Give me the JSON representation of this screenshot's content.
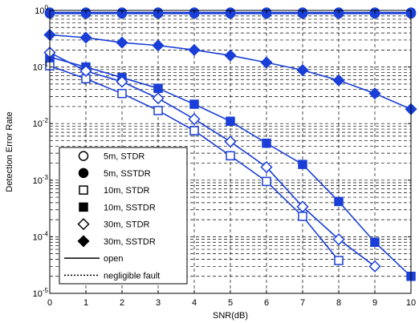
{
  "chart_data": {
    "type": "line",
    "title": "",
    "xlabel": "SNR(dB)",
    "ylabel": "Detection Error Rate",
    "xlim": [
      0,
      10
    ],
    "ylim": [
      1e-05,
      1
    ],
    "yscale": "log",
    "x_ticks": [
      "0",
      "1",
      "2",
      "3",
      "4",
      "5",
      "6",
      "7",
      "8",
      "9",
      "10"
    ],
    "y_ticks": [
      {
        "base": "10",
        "exp": "-5"
      },
      {
        "base": "10",
        "exp": "-4"
      },
      {
        "base": "10",
        "exp": "-3"
      },
      {
        "base": "10",
        "exp": "-2"
      },
      {
        "base": "10",
        "exp": "-1"
      },
      {
        "base": "10",
        "exp": "0"
      }
    ],
    "grid": true,
    "legend_position": "bottom-left",
    "color": "#1a3fd8",
    "series": [
      {
        "name": "5m, STDR",
        "marker": "circle-open",
        "line": "solid",
        "x": [
          0,
          1,
          2,
          3,
          4,
          5,
          6,
          7,
          8,
          9,
          10
        ],
        "y": [
          0.92,
          0.92,
          0.92,
          0.92,
          0.92,
          0.92,
          0.92,
          0.92,
          0.92,
          0.92,
          0.92
        ]
      },
      {
        "name": "5m, SSTDR",
        "marker": "circle-filled",
        "line": "solid",
        "x": [
          0,
          1,
          2,
          3,
          4,
          5,
          6,
          7,
          8,
          9,
          10
        ],
        "y": [
          0.88,
          0.88,
          0.88,
          0.88,
          0.88,
          0.88,
          0.88,
          0.88,
          0.88,
          0.88,
          0.88
        ]
      },
      {
        "name": "10m, STDR",
        "marker": "square-open",
        "line": "solid",
        "x": [
          0,
          1,
          2,
          3,
          4,
          5,
          6,
          7,
          8
        ],
        "y": [
          0.105,
          0.062,
          0.034,
          0.017,
          0.0075,
          0.0027,
          0.00095,
          0.00023,
          3.8e-05
        ]
      },
      {
        "name": "10m, SSTDR",
        "marker": "square-filled",
        "line": "solid",
        "x": [
          0,
          1,
          2,
          3,
          4,
          5,
          6,
          7,
          8,
          9,
          10
        ],
        "y": [
          0.15,
          0.1,
          0.065,
          0.042,
          0.022,
          0.011,
          0.0045,
          0.0019,
          0.00042,
          8e-05,
          2e-05
        ]
      },
      {
        "name": "30m, STDR",
        "marker": "diamond-open",
        "line": "solid",
        "x": [
          0,
          1,
          2,
          3,
          4,
          5,
          6,
          7,
          8,
          9
        ],
        "y": [
          0.18,
          0.085,
          0.055,
          0.028,
          0.012,
          0.0048,
          0.0017,
          0.00034,
          9e-05,
          3e-05
        ]
      },
      {
        "name": "30m, SSTDR",
        "marker": "diamond-filled",
        "line": "solid",
        "x": [
          0,
          1,
          2,
          3,
          4,
          5,
          6,
          7,
          8,
          9,
          10
        ],
        "y": [
          0.37,
          0.33,
          0.27,
          0.24,
          0.2,
          0.16,
          0.12,
          0.088,
          0.058,
          0.034,
          0.018
        ]
      }
    ],
    "legend_extra": [
      {
        "name": "open",
        "line": "solid"
      },
      {
        "name": "negligible fault",
        "line": "dotted"
      }
    ]
  }
}
